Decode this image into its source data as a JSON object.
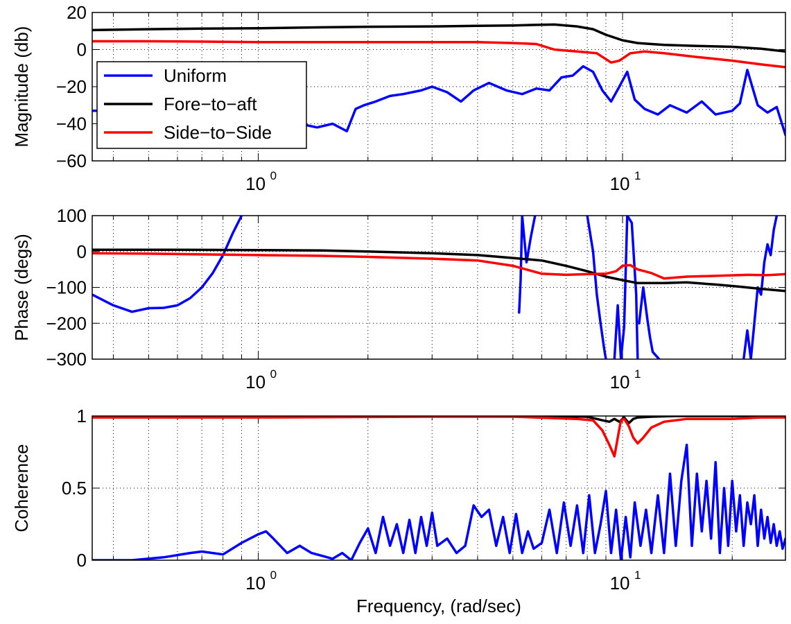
{
  "chart_data": [
    {
      "type": "line",
      "panel": "magnitude",
      "xscale": "log",
      "xlim": [
        0.35,
        28
      ],
      "ylim": [
        -60,
        20
      ],
      "xticks": [
        {
          "value": 1,
          "base": "10",
          "exp": "0"
        },
        {
          "value": 10,
          "base": "10",
          "exp": "1"
        }
      ],
      "yticks": [
        "20",
        "0",
        "−20",
        "−40",
        "−60"
      ],
      "ytick_values": [
        20,
        0,
        -20,
        -40,
        -60
      ],
      "xlabel": "",
      "ylabel": "Magnitude (db)",
      "grid": true,
      "legend": {
        "placement": "top-left",
        "entries": [
          "Uniform",
          "Fore−to−aft",
          "Side−to−Side"
        ]
      },
      "series": [
        {
          "name": "Uniform",
          "color": "#0000ff",
          "x": [
            0.35,
            0.5,
            0.6,
            0.7,
            0.8,
            0.9,
            1.0,
            1.1,
            1.2,
            1.3,
            1.45,
            1.6,
            1.75,
            1.85,
            1.95,
            2.1,
            2.3,
            2.5,
            2.8,
            3.0,
            3.3,
            3.6,
            3.9,
            4.3,
            4.8,
            5.3,
            5.8,
            6.3,
            6.8,
            7.3,
            7.8,
            8.3,
            8.8,
            9.3,
            9.8,
            10.3,
            10.8,
            11.5,
            12.5,
            13.5,
            15,
            16.5,
            18,
            20,
            21,
            22,
            23.5,
            25,
            26.5,
            28
          ],
          "y": [
            -33,
            -33,
            -32,
            -31,
            -30,
            -32,
            -34,
            -36,
            -38,
            -40,
            -42,
            -40,
            -44,
            -32,
            -30,
            -28,
            -25,
            -24,
            -22,
            -20,
            -23,
            -28,
            -22,
            -18,
            -22,
            -24,
            -21,
            -22,
            -15,
            -14,
            -9,
            -12,
            -22,
            -28,
            -20,
            -12,
            -27,
            -32,
            -35,
            -30,
            -34,
            -28,
            -35,
            -33,
            -29,
            -11,
            -30,
            -34,
            -31,
            -46
          ]
        },
        {
          "name": "Fore−to−aft",
          "color": "#000000",
          "x": [
            0.35,
            0.5,
            0.7,
            1.0,
            1.5,
            2.0,
            3.0,
            4.0,
            5.0,
            5.8,
            6.5,
            7.5,
            8.3,
            9.0,
            10.0,
            11.0,
            13.0,
            16.0,
            20.0,
            24.0,
            28.0
          ],
          "y": [
            10.5,
            11,
            11.3,
            11.5,
            12,
            12.3,
            12.5,
            12.8,
            13,
            13.3,
            13.5,
            12.5,
            11,
            8,
            5,
            3.5,
            2.5,
            2,
            1.5,
            0.5,
            -1
          ]
        },
        {
          "name": "Side−to−Side",
          "color": "#ff0000",
          "x": [
            0.35,
            0.5,
            0.7,
            1.0,
            1.5,
            2.0,
            3.0,
            4.0,
            5.0,
            5.8,
            6.5,
            7.5,
            8.5,
            9.3,
            9.8,
            10.5,
            11.5,
            13.0,
            16.0,
            20.0,
            24.0,
            28.0
          ],
          "y": [
            4.5,
            4.5,
            4.3,
            4,
            4,
            4,
            4,
            4,
            3.5,
            3,
            0,
            -1,
            -2,
            -7,
            -6,
            -2,
            -1,
            -2,
            -4,
            -6,
            -8,
            -9.5
          ]
        }
      ]
    },
    {
      "type": "line",
      "panel": "phase",
      "xscale": "log",
      "xlim": [
        0.35,
        28
      ],
      "ylim": [
        -300,
        100
      ],
      "xticks": [
        {
          "value": 1,
          "base": "10",
          "exp": "0"
        },
        {
          "value": 10,
          "base": "10",
          "exp": "1"
        }
      ],
      "yticks": [
        "100",
        "0",
        "−100",
        "−200",
        "−300"
      ],
      "ytick_values": [
        100,
        0,
        -100,
        -200,
        -300
      ],
      "xlabel": "",
      "ylabel": "Phase (degs)",
      "grid": true,
      "series": [
        {
          "name": "Uniform",
          "color": "#0000ff",
          "segments": [
            {
              "x": [
                0.35,
                0.4,
                0.45,
                0.5,
                0.55,
                0.6,
                0.65,
                0.7,
                0.75,
                0.8,
                0.85,
                0.9
              ],
              "y": [
                -120,
                -150,
                -168,
                -158,
                -157,
                -150,
                -130,
                -100,
                -60,
                -10,
                50,
                100
              ]
            },
            {
              "x": [
                5.2,
                5.25,
                5.3,
                5.45,
                5.6,
                5.75
              ],
              "y": [
                -170,
                -80,
                100,
                -30,
                40,
                100
              ]
            },
            {
              "x": [
                8.0,
                8.3,
                8.5,
                8.7,
                8.9,
                9.0
              ],
              "y": [
                100,
                0,
                -120,
                -200,
                -270,
                -300
              ]
            },
            {
              "x": [
                9.5,
                9.7,
                9.9,
                10.1,
                10.3,
                10.6,
                10.9,
                11.0
              ],
              "y": [
                -300,
                -150,
                -300,
                -210,
                100,
                80,
                -120,
                -300
              ]
            },
            {
              "x": [
                11.1,
                11.4,
                11.7,
                11.9,
                12.1,
                12.6
              ],
              "y": [
                -200,
                -100,
                -190,
                -240,
                -280,
                -300
              ]
            },
            {
              "x": [
                21.5,
                22.0,
                22.5,
                23.0,
                23.5,
                24.0,
                24.5,
                25.0,
                25.5,
                26.0,
                26.5
              ],
              "y": [
                -300,
                -220,
                -300,
                -200,
                -100,
                -120,
                -30,
                20,
                -10,
                60,
                100
              ]
            }
          ]
        },
        {
          "name": "Fore−to−aft",
          "color": "#000000",
          "x": [
            0.35,
            0.5,
            0.7,
            1.0,
            1.5,
            2.0,
            3.0,
            4.0,
            5.0,
            6.0,
            7.0,
            8.0,
            9.0,
            10.0,
            11.0,
            13.0,
            15.0,
            18.0,
            21.0,
            24.0,
            28.0
          ],
          "y": [
            5,
            5,
            4.5,
            4,
            3,
            0,
            -5,
            -10,
            -18,
            -25,
            -40,
            -55,
            -70,
            -80,
            -88,
            -88,
            -86,
            -92,
            -98,
            -104,
            -110
          ]
        },
        {
          "name": "Side−to−Side",
          "color": "#ff0000",
          "x": [
            0.35,
            0.5,
            0.7,
            1.0,
            1.5,
            2.0,
            3.0,
            4.0,
            5.0,
            6.0,
            7.0,
            8.0,
            9.0,
            9.6,
            10.0,
            10.5,
            11.0,
            12.0,
            13.0,
            15.0,
            18.0,
            22.0,
            25.0,
            28.0
          ],
          "y": [
            -5,
            -6,
            -8,
            -10,
            -12,
            -15,
            -20,
            -25,
            -40,
            -62,
            -65,
            -63,
            -62,
            -55,
            -40,
            -38,
            -50,
            -60,
            -75,
            -70,
            -68,
            -65,
            -66,
            -63
          ]
        }
      ]
    },
    {
      "type": "line",
      "panel": "coherence",
      "xscale": "log",
      "xlim": [
        0.35,
        28
      ],
      "ylim": [
        0,
        1
      ],
      "xticks": [
        {
          "value": 1,
          "base": "10",
          "exp": "0"
        },
        {
          "value": 10,
          "base": "10",
          "exp": "1"
        }
      ],
      "yticks": [
        "1",
        "0.5",
        "0"
      ],
      "ytick_values": [
        1,
        0.5,
        0
      ],
      "xlabel": "Frequency, (rad/sec)",
      "ylabel": "Coherence",
      "grid": true,
      "series": [
        {
          "name": "Uniform",
          "color": "#0000ff",
          "x": [
            0.35,
            0.45,
            0.55,
            0.65,
            0.7,
            0.8,
            0.9,
            1.0,
            1.05,
            1.1,
            1.2,
            1.3,
            1.4,
            1.5,
            1.6,
            1.7,
            1.8,
            1.9,
            2.0,
            2.1,
            2.2,
            2.3,
            2.4,
            2.5,
            2.6,
            2.7,
            2.8,
            2.9,
            3.0,
            3.1,
            3.3,
            3.5,
            3.7,
            3.9,
            4.1,
            4.3,
            4.5,
            4.7,
            4.9,
            5.1,
            5.3,
            5.5,
            5.7,
            6.0,
            6.3,
            6.6,
            6.9,
            7.2,
            7.5,
            7.8,
            8.1,
            8.4,
            8.7,
            9.0,
            9.3,
            9.6,
            9.9,
            10.2,
            10.5,
            10.8,
            11.2,
            11.6,
            12.0,
            12.5,
            13.0,
            13.5,
            14.0,
            14.5,
            15.0,
            15.5,
            16.0,
            16.5,
            17.0,
            17.5,
            18.0,
            18.5,
            19.0,
            19.5,
            20.0,
            20.5,
            21.0,
            21.5,
            22.0,
            22.5,
            23.0,
            23.5,
            24.0,
            24.5,
            25.0,
            25.5,
            26.0,
            26.5,
            27.0,
            27.5,
            28.0
          ],
          "y": [
            0.0,
            0.0,
            0.02,
            0.05,
            0.06,
            0.04,
            0.12,
            0.18,
            0.2,
            0.15,
            0.05,
            0.1,
            0.05,
            0.03,
            0.01,
            0.05,
            0.0,
            0.12,
            0.22,
            0.05,
            0.3,
            0.1,
            0.25,
            0.05,
            0.28,
            0.05,
            0.3,
            0.1,
            0.33,
            0.1,
            0.15,
            0.05,
            0.1,
            0.38,
            0.3,
            0.35,
            0.1,
            0.3,
            0.05,
            0.32,
            0.05,
            0.2,
            0.08,
            0.12,
            0.35,
            0.05,
            0.4,
            0.1,
            0.38,
            0.05,
            0.45,
            0.05,
            0.25,
            0.48,
            0.05,
            0.35,
            0.0,
            0.3,
            0.02,
            0.4,
            0.1,
            0.35,
            0.05,
            0.45,
            0.05,
            0.6,
            0.1,
            0.55,
            0.8,
            0.1,
            0.6,
            0.2,
            0.55,
            0.15,
            0.68,
            0.05,
            0.5,
            0.1,
            0.55,
            0.2,
            0.45,
            0.1,
            0.4,
            0.25,
            0.45,
            0.1,
            0.35,
            0.15,
            0.3,
            0.12,
            0.25,
            0.1,
            0.2,
            0.08,
            0.15
          ]
        },
        {
          "name": "Fore−to−aft",
          "color": "#000000",
          "x": [
            0.35,
            1.0,
            3.0,
            6.0,
            8.0,
            8.8,
            9.2,
            9.5,
            9.8,
            10.1,
            10.4,
            10.7,
            11.0,
            12.0,
            14.0,
            20.0,
            28.0
          ],
          "y": [
            1.0,
            1.0,
            1.0,
            1.0,
            0.995,
            0.97,
            0.96,
            0.98,
            0.96,
            0.99,
            0.95,
            0.98,
            0.99,
            0.995,
            1.0,
            1.0,
            1.0
          ]
        },
        {
          "name": "Side−to−Side",
          "color": "#ff0000",
          "x": [
            0.35,
            1.0,
            3.0,
            5.0,
            6.5,
            7.5,
            8.3,
            8.8,
            9.2,
            9.5,
            9.7,
            9.9,
            10.1,
            10.4,
            10.7,
            11.0,
            11.4,
            12.0,
            13.0,
            15.0,
            20.0,
            24.0,
            28.0
          ],
          "y": [
            0.99,
            0.99,
            0.995,
            0.995,
            0.985,
            0.98,
            0.97,
            0.9,
            0.8,
            0.72,
            0.85,
            0.97,
            0.98,
            0.93,
            0.85,
            0.81,
            0.85,
            0.92,
            0.96,
            0.98,
            0.98,
            0.99,
            0.99
          ]
        }
      ]
    }
  ]
}
